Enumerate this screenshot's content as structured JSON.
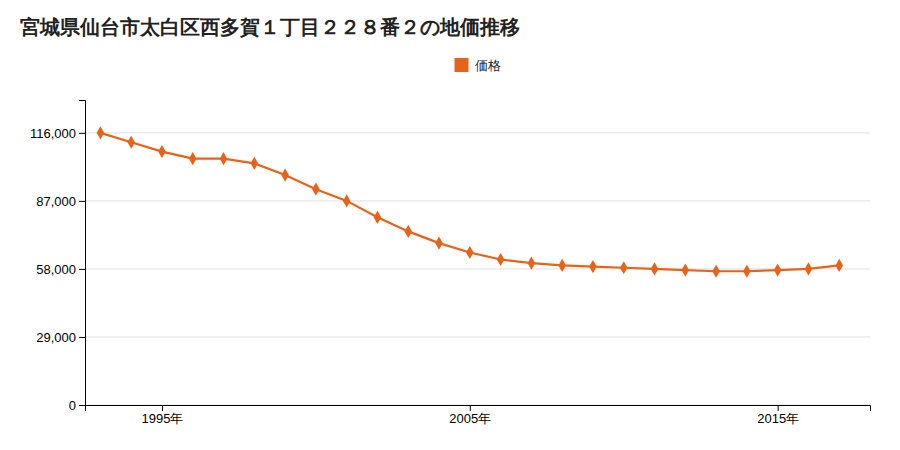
{
  "chart_data": {
    "type": "line",
    "title": "宮城県仙台市太白区西多賀１丁目２２８番２の地価推移",
    "x": [
      1993,
      1994,
      1995,
      1996,
      1997,
      1998,
      1999,
      2000,
      2001,
      2002,
      2003,
      2004,
      2005,
      2006,
      2007,
      2008,
      2009,
      2010,
      2011,
      2012,
      2013,
      2014,
      2015,
      2016,
      2017
    ],
    "series": [
      {
        "name": "価格",
        "color": "#e8631a",
        "marker": "diamond",
        "values": [
          116000,
          112000,
          108000,
          105000,
          105000,
          103000,
          98000,
          92000,
          87000,
          80000,
          74000,
          69000,
          65000,
          62000,
          60500,
          59500,
          59000,
          58500,
          58000,
          57500,
          57000,
          57000,
          57500,
          58000,
          59500
        ]
      }
    ],
    "xlim": [
      1992.5,
      2018
    ],
    "xticks": [
      {
        "value": 1995,
        "label": "1995年"
      },
      {
        "value": 2005,
        "label": "2005年"
      },
      {
        "value": 2015,
        "label": "2015年"
      }
    ],
    "ylim": [
      0,
      130000
    ],
    "yticks": [
      0,
      {
        "value": 29000,
        "label": "29,000"
      },
      {
        "value": 58000,
        "label": "58,000"
      },
      {
        "value": 87000,
        "label": "87,000"
      },
      {
        "value": 116000,
        "label": "116,000"
      }
    ],
    "grid": true,
    "legend": "top"
  }
}
